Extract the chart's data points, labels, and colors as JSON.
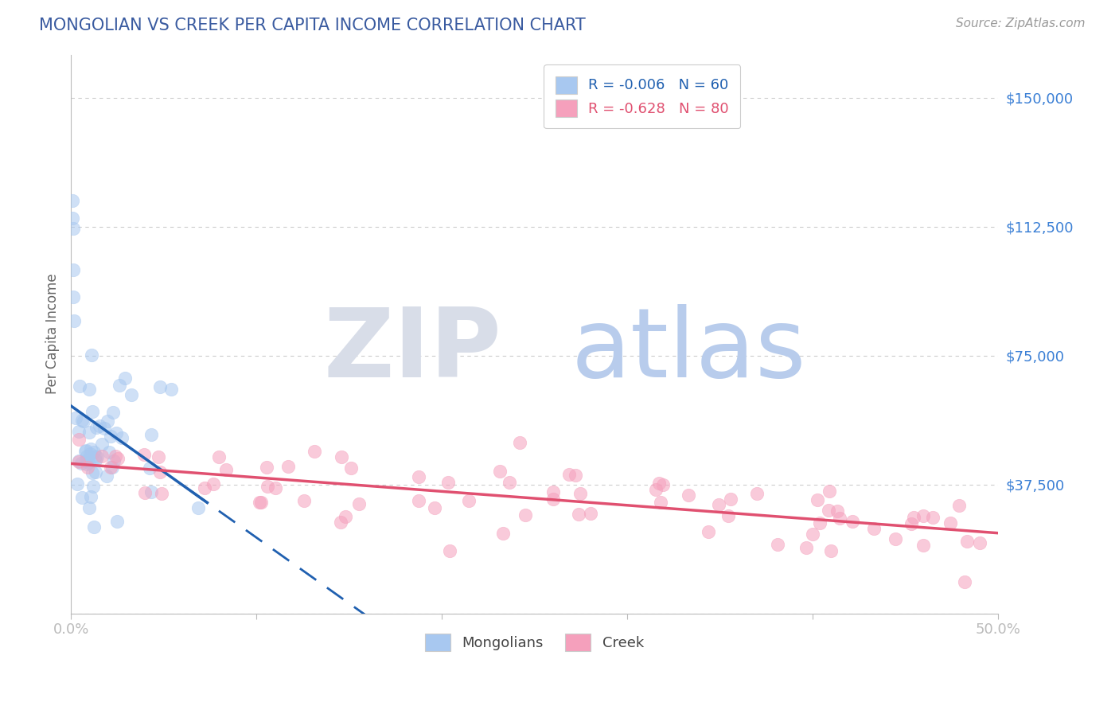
{
  "title": "MONGOLIAN VS CREEK PER CAPITA INCOME CORRELATION CHART",
  "source": "Source: ZipAtlas.com",
  "ylabel": "Per Capita Income",
  "xlim": [
    0.0,
    0.5
  ],
  "ylim": [
    0,
    162500
  ],
  "yticks": [
    0,
    37500,
    75000,
    112500,
    150000
  ],
  "ytick_labels": [
    "",
    "$37,500",
    "$75,000",
    "$112,500",
    "$150,000"
  ],
  "xticks": [
    0.0,
    0.1,
    0.2,
    0.3,
    0.4,
    0.5
  ],
  "xtick_labels": [
    "0.0%",
    "",
    "",
    "",
    "",
    "50.0%"
  ],
  "mongolian_R": -0.006,
  "mongolian_N": 60,
  "creek_R": -0.628,
  "creek_N": 80,
  "scatter_alpha": 0.55,
  "mongolian_color": "#A8C8F0",
  "creek_color": "#F5A0BC",
  "mongolian_line_color": "#2060B0",
  "creek_line_color": "#E05070",
  "background_color": "#FFFFFF",
  "title_color": "#3A5BA0",
  "axis_color": "#BBBBBB",
  "grid_color": "#CCCCCC",
  "watermark_zip": "ZIP",
  "watermark_atlas": "atlas",
  "legend_mongolians": "Mongolians",
  "legend_creek": "Creek"
}
